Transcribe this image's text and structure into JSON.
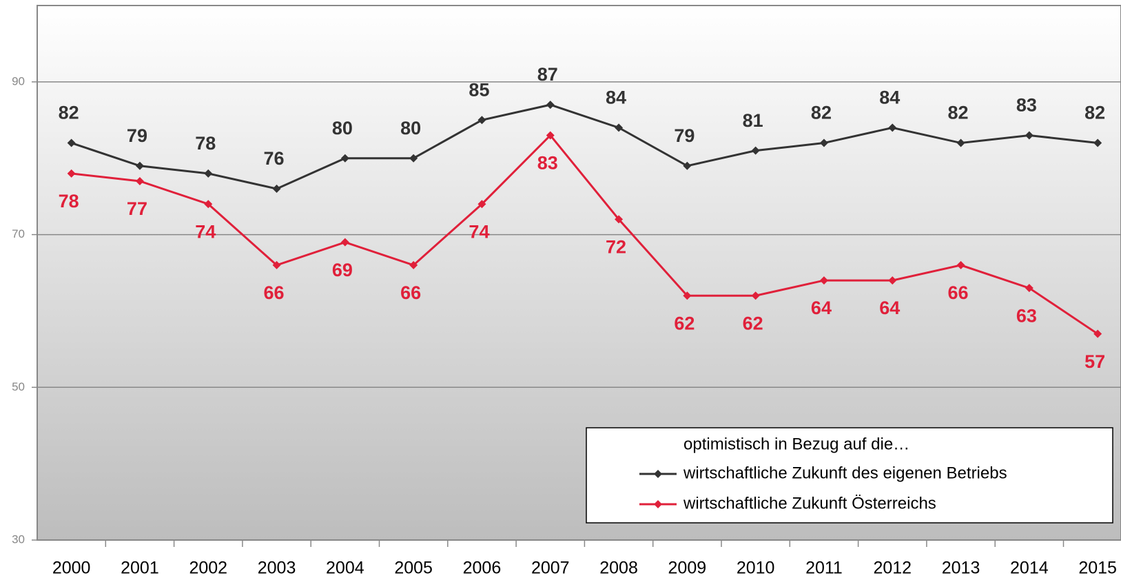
{
  "chart_data": {
    "type": "line",
    "categories": [
      "2000",
      "2001",
      "2002",
      "2003",
      "2004",
      "2005",
      "2006",
      "2007",
      "2008",
      "2009",
      "2010",
      "2011",
      "2012",
      "2013",
      "2014",
      "2015"
    ],
    "series": [
      {
        "name": "wirtschaftliche Zukunft des eigenen Betriebs",
        "color": "#333333",
        "values": [
          82,
          79,
          78,
          76,
          80,
          80,
          85,
          87,
          84,
          79,
          81,
          82,
          84,
          82,
          83,
          82
        ]
      },
      {
        "name": "wirtschaftliche Zukunft Österreichs",
        "color": "#e0203a",
        "values": [
          78,
          77,
          74,
          66,
          69,
          66,
          74,
          83,
          72,
          62,
          62,
          64,
          64,
          66,
          63,
          57
        ]
      }
    ],
    "legend_title": "optimistisch in Bezug auf die…",
    "legend": "lower right",
    "ylim": [
      30,
      100
    ],
    "yticks": [
      30,
      50,
      70,
      90
    ],
    "grid": true
  }
}
